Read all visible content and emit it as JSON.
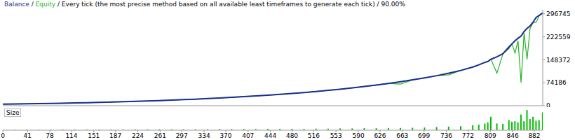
{
  "chart_data": [
    {
      "type": "line",
      "title": "Balance / Equity / Every tick (the most precise method based on all available least timeframes to generate each tick) / 90.00%",
      "x": [
        0,
        20,
        40,
        60,
        80,
        100,
        120,
        140,
        160,
        180,
        200,
        220,
        240,
        260,
        280,
        300,
        320,
        340,
        360,
        380,
        400,
        420,
        440,
        460,
        480,
        500,
        520,
        540,
        560,
        580,
        600,
        620,
        640,
        660,
        680,
        700,
        720,
        740,
        760,
        780,
        790,
        800,
        805,
        810,
        820,
        830,
        840,
        845,
        850,
        855,
        860,
        865,
        870,
        875,
        880,
        885,
        890,
        896
      ],
      "series": [
        {
          "name": "Balance",
          "color": "#1c2d94",
          "values": [
            5000,
            5500,
            6100,
            6700,
            7400,
            8100,
            8900,
            9800,
            10700,
            11700,
            12800,
            14000,
            15300,
            16600,
            18000,
            19600,
            21200,
            23000,
            24900,
            27000,
            29200,
            31500,
            34000,
            36700,
            39600,
            42700,
            46000,
            49600,
            53400,
            57500,
            62000,
            67000,
            72000,
            77500,
            83500,
            90000,
            97000,
            105000,
            114000,
            125000,
            132000,
            140000,
            143000,
            150000,
            158000,
            168000,
            190000,
            200000,
            210000,
            218000,
            225000,
            240000,
            250000,
            258000,
            270000,
            285000,
            292000,
            300000
          ]
        },
        {
          "name": "Equity",
          "color": "#22b422",
          "values": [
            5000,
            5500,
            6100,
            6700,
            7400,
            8100,
            8900,
            9800,
            10700,
            11700,
            12800,
            14000,
            15300,
            16600,
            18000,
            19600,
            21200,
            23000,
            24900,
            27000,
            29200,
            31500,
            34000,
            36700,
            39600,
            42700,
            46000,
            49600,
            53400,
            57500,
            62000,
            67000,
            72000,
            70000,
            83500,
            90000,
            97000,
            100000,
            114000,
            125000,
            132000,
            140000,
            143000,
            150000,
            105000,
            168000,
            185000,
            200000,
            170000,
            210000,
            75000,
            235000,
            150000,
            250000,
            268000,
            270000,
            290000,
            300000
          ]
        }
      ],
      "xlim": [
        0,
        896
      ],
      "ylim": [
        0,
        310000
      ],
      "yticks": [
        0,
        74186,
        148372,
        222559,
        296745
      ],
      "grid": false,
      "tick_labels": "y"
    },
    {
      "type": "bar",
      "title": "Size",
      "x": [
        0,
        20,
        40,
        60,
        80,
        100,
        120,
        140,
        160,
        180,
        200,
        220,
        240,
        260,
        280,
        300,
        320,
        340,
        360,
        380,
        400,
        420,
        440,
        460,
        480,
        500,
        520,
        540,
        560,
        580,
        600,
        620,
        640,
        660,
        680,
        700,
        720,
        740,
        760,
        780,
        790,
        800,
        805,
        810,
        820,
        830,
        840,
        845,
        850,
        855,
        860,
        865,
        870,
        875,
        880,
        885,
        890,
        896
      ],
      "values": [
        2,
        2,
        2,
        2,
        2,
        3,
        3,
        3,
        3,
        3,
        3,
        3,
        4,
        4,
        4,
        4,
        4,
        4,
        5,
        5,
        5,
        5,
        6,
        6,
        6,
        6,
        7,
        7,
        8,
        8,
        9,
        9,
        10,
        10,
        11,
        12,
        14,
        16,
        18,
        22,
        25,
        30,
        35,
        60,
        30,
        28,
        45,
        38,
        40,
        35,
        70,
        40,
        90,
        50,
        60,
        42,
        45,
        80
      ],
      "color": "#00c000",
      "xlim": [
        0,
        896
      ],
      "ylim": [
        0,
        100
      ],
      "xticks": [
        0,
        41,
        78,
        114,
        151,
        187,
        224,
        261,
        297,
        334,
        370,
        407,
        444,
        480,
        516,
        553,
        590,
        626,
        663,
        699,
        736,
        772,
        809,
        846,
        882
      ],
      "grid": false,
      "tick_labels": "x"
    }
  ]
}
